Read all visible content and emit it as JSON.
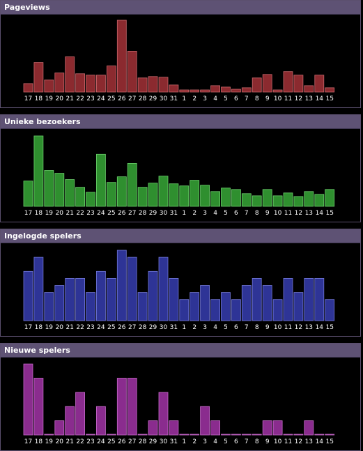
{
  "chart_data": [
    {
      "type": "bar",
      "title": "Pageviews",
      "color": "#8b2a2f",
      "border": "#c9686c",
      "categories": [
        "17",
        "18",
        "19",
        "20",
        "21",
        "22",
        "23",
        "24",
        "25",
        "26",
        "27",
        "28",
        "29",
        "30",
        "31",
        "1",
        "2",
        "3",
        "4",
        "5",
        "6",
        "7",
        "8",
        "9",
        "10",
        "11",
        "12",
        "13",
        "14",
        "15"
      ],
      "values": [
        12,
        42,
        17,
        27,
        50,
        26,
        24,
        24,
        37,
        102,
        58,
        20,
        22,
        21,
        10,
        3,
        3,
        3,
        9,
        7,
        4,
        6,
        20,
        25,
        3,
        29,
        24,
        9,
        24,
        6
      ],
      "ylim": [
        0,
        105
      ]
    },
    {
      "type": "bar",
      "title": "Unieke bezoekers",
      "color": "#2f8f2f",
      "border": "#6ccf6c",
      "categories": [
        "17",
        "18",
        "19",
        "20",
        "21",
        "22",
        "23",
        "24",
        "25",
        "26",
        "27",
        "28",
        "29",
        "30",
        "31",
        "1",
        "2",
        "3",
        "4",
        "5",
        "6",
        "7",
        "8",
        "9",
        "10",
        "11",
        "12",
        "13",
        "14",
        "15"
      ],
      "values": [
        36,
        100,
        51,
        47,
        38,
        27,
        20,
        74,
        34,
        42,
        61,
        27,
        33,
        43,
        32,
        29,
        37,
        30,
        21,
        26,
        24,
        18,
        15,
        24,
        15,
        19,
        14,
        21,
        17,
        24
      ],
      "ylim": [
        0,
        105
      ]
    },
    {
      "type": "bar",
      "title": "Ingelogde spelers",
      "color": "#2e3496",
      "border": "#7278d8",
      "categories": [
        "17",
        "18",
        "19",
        "20",
        "21",
        "22",
        "23",
        "24",
        "25",
        "26",
        "27",
        "28",
        "29",
        "30",
        "31",
        "1",
        "2",
        "3",
        "4",
        "5",
        "6",
        "7",
        "8",
        "9",
        "10",
        "11",
        "12",
        "13",
        "14",
        "15"
      ],
      "values": [
        7,
        9,
        4,
        5,
        6,
        6,
        4,
        7,
        6,
        10,
        9,
        4,
        7,
        9,
        6,
        3,
        4,
        5,
        3,
        4,
        3,
        5,
        6,
        5,
        3,
        6,
        4,
        6,
        6,
        3
      ],
      "ylim": [
        0,
        10.5
      ]
    },
    {
      "type": "bar",
      "title": "Nieuwe spelers",
      "color": "#8a2c8e",
      "border": "#c76ccb",
      "categories": [
        "17",
        "18",
        "19",
        "20",
        "21",
        "22",
        "23",
        "24",
        "25",
        "26",
        "27",
        "28",
        "29",
        "30",
        "31",
        "1",
        "2",
        "3",
        "4",
        "5",
        "6",
        "7",
        "8",
        "9",
        "10",
        "11",
        "12",
        "13",
        "14",
        "15"
      ],
      "values": [
        5,
        4,
        0,
        1,
        2,
        3,
        0,
        2,
        0,
        4,
        4,
        0,
        1,
        3,
        1,
        0,
        0,
        2,
        1,
        0,
        0,
        0,
        0,
        1,
        1,
        0,
        0,
        1,
        0,
        0
      ],
      "ylim": [
        0,
        5.2
      ]
    }
  ]
}
